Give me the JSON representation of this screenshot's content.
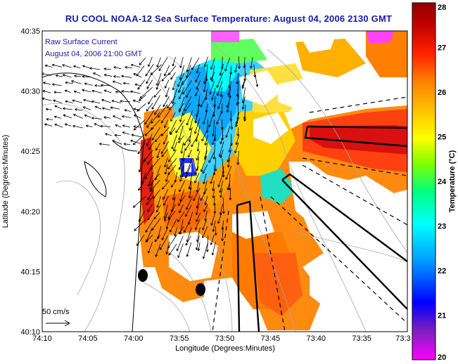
{
  "title": "RU COOL  NOAA-12  Sea Surface Temperature:  August 04, 2006 2130 GMT",
  "legend": {
    "line1": "Raw Surface Current",
    "line2": "August 04, 2006 21:00 GMT",
    "scale_label": "50 cm/s"
  },
  "axes": {
    "xlabel": "Longitude (Degrees:Minutes)",
    "ylabel": "Latitude (Degrees:Minutes)",
    "xticks": [
      "74:10",
      "74:05",
      "74:00",
      "73:55",
      "73:50",
      "73:45",
      "73:40",
      "73:35",
      "73:3"
    ],
    "yticks": [
      "40:35",
      "40:30",
      "40:25",
      "40:20",
      "40:15",
      "40:10"
    ]
  },
  "colorbar": {
    "label": "Temperature (°C)",
    "ticks": [
      "28",
      "27",
      "26",
      "25",
      "24",
      "23",
      "22",
      "21",
      "20"
    ],
    "min": 20,
    "max": 28,
    "colors": [
      "#ff00ff",
      "#6020c0",
      "#0000ff",
      "#00a0ff",
      "#00ffff",
      "#00ff80",
      "#80ff00",
      "#ffff00",
      "#ffc000",
      "#ff8000",
      "#ff2000",
      "#c00000",
      "#900000"
    ]
  },
  "map_colors": {
    "land": "#ffffff",
    "coast": "#000000",
    "bathymetry": "#a0a0a0",
    "cloud": "#ffffff"
  }
}
